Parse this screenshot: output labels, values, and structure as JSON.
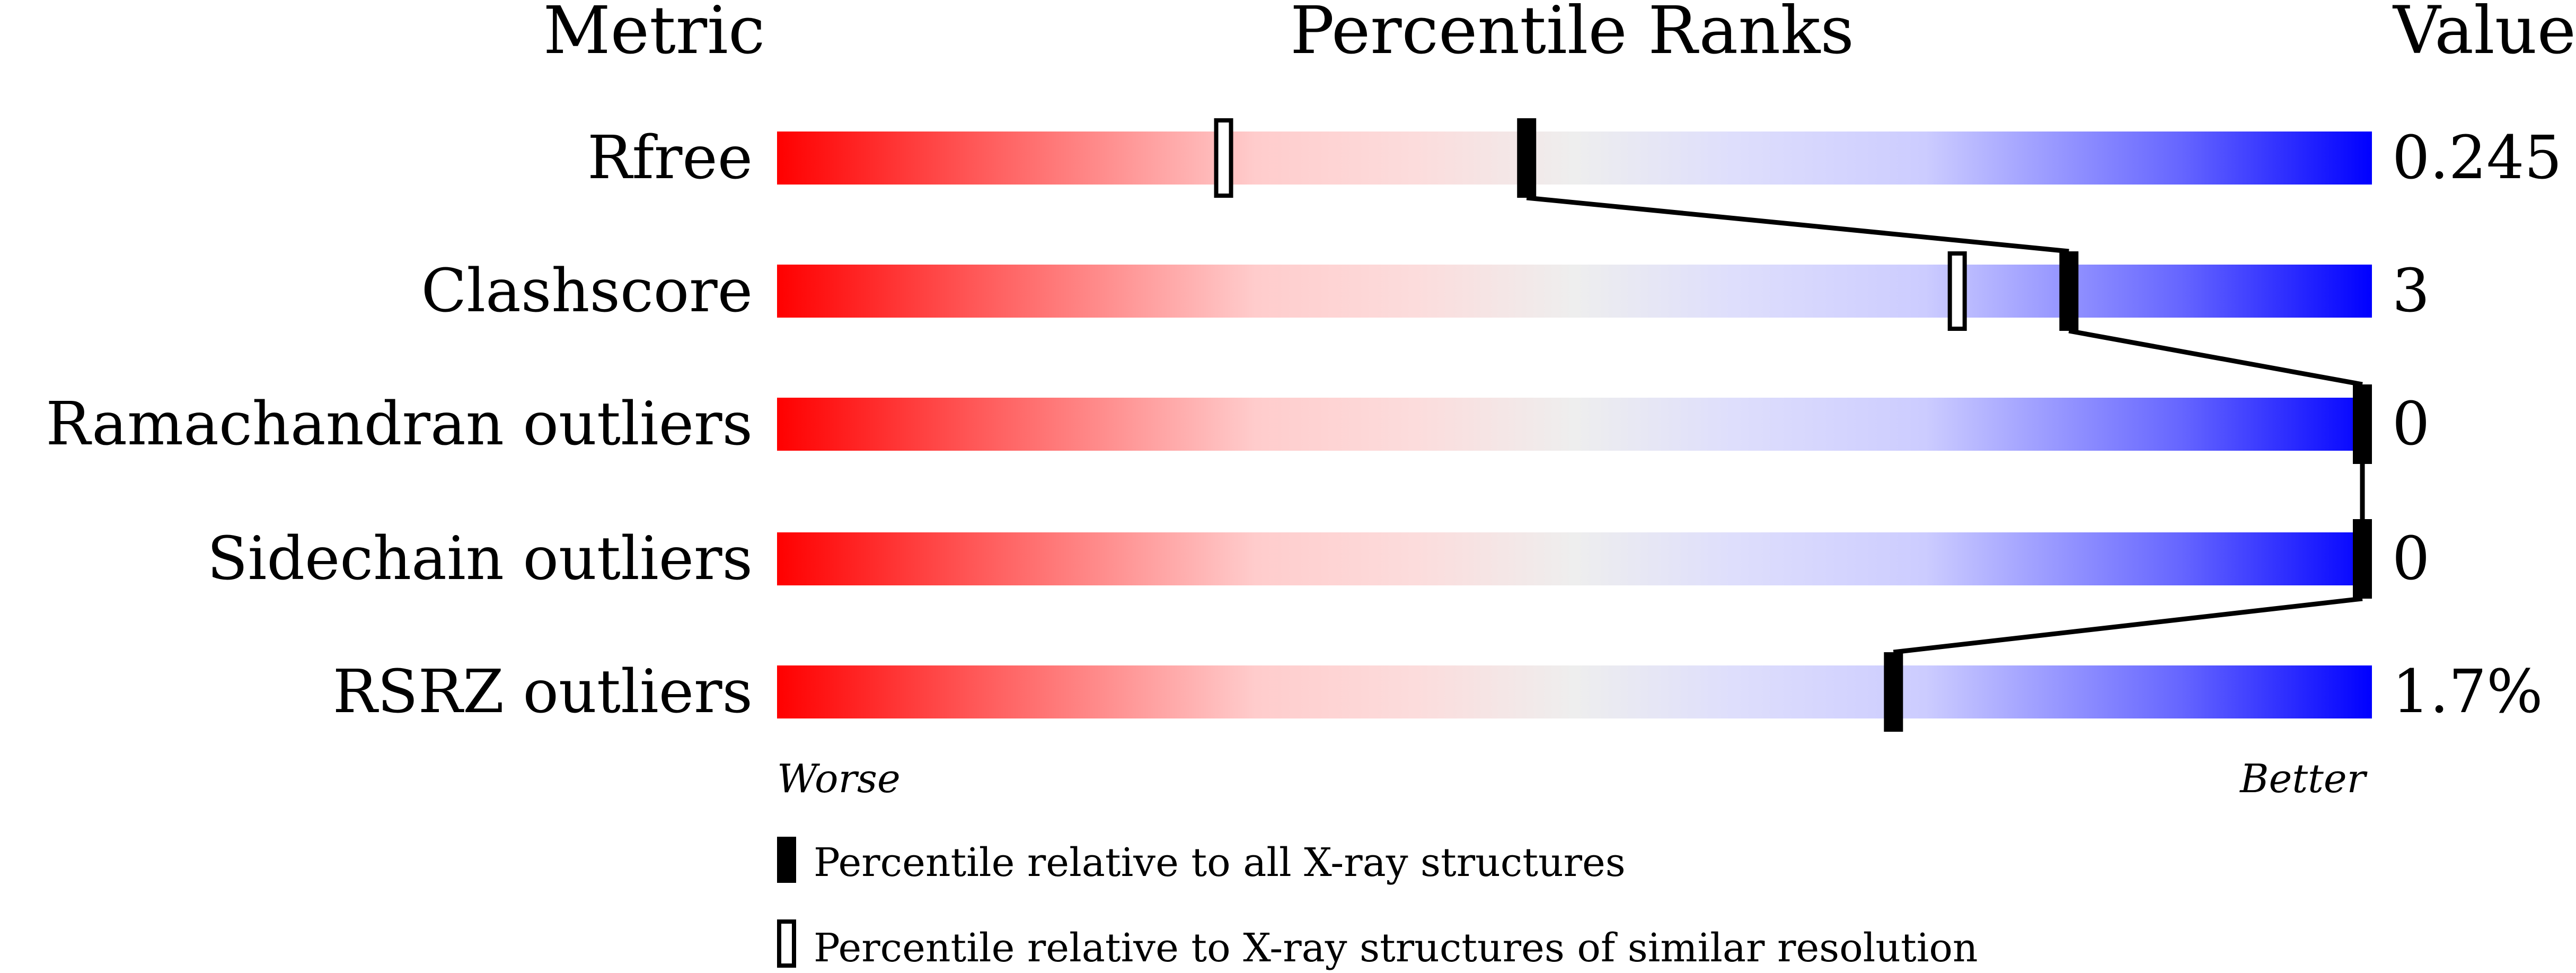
{
  "chart_data": {
    "type": "percentile-bar",
    "headers": {
      "metric": "Metric",
      "ranks": "Percentile Ranks",
      "value": "Value"
    },
    "xlim": [
      0,
      100
    ],
    "rows": [
      {
        "metric": "Rfree",
        "value": "0.245",
        "percentile_all": 47,
        "percentile_similar": 28
      },
      {
        "metric": "Clashscore",
        "value": "3",
        "percentile_all": 81,
        "percentile_similar": 74
      },
      {
        "metric": "Ramachandran outliers",
        "value": "0",
        "percentile_all": 100,
        "percentile_similar": null
      },
      {
        "metric": "Sidechain outliers",
        "value": "0",
        "percentile_all": 100,
        "percentile_similar": null
      },
      {
        "metric": "RSRZ outliers",
        "value": "1.7%",
        "percentile_all": 70,
        "percentile_similar": null
      }
    ],
    "axis_left_label": "Worse",
    "axis_right_label": "Better",
    "legend": [
      {
        "marker": "filled",
        "label": "Percentile relative to all X-ray structures"
      },
      {
        "marker": "open",
        "label": "Percentile relative to X-ray structures of similar resolution"
      }
    ],
    "colors": {
      "worse": "#ff0000",
      "middle": "#eeeeee",
      "better": "#0000ff",
      "marker": "#000000"
    }
  }
}
